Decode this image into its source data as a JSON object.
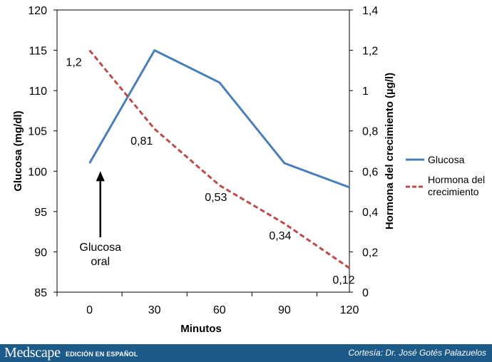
{
  "chart_data": {
    "type": "line",
    "x": [
      0,
      30,
      60,
      90,
      120
    ],
    "xticks": [
      "0",
      "30",
      "60",
      "90",
      "120"
    ],
    "xlabel": "Minutos",
    "ylabel_left": "Glucosa (mg/dl)",
    "ylabel_right": "Hormona del crecimiento (µg/l)",
    "ylim_left": [
      85,
      120
    ],
    "ylim_right": [
      0,
      1.4
    ],
    "yticks_left": [
      "85",
      "90",
      "95",
      "100",
      "105",
      "110",
      "115",
      "120"
    ],
    "yticks_right": [
      "0",
      "0,2",
      "0,4",
      "0,6",
      "0,8",
      "1",
      "1,2",
      "1,4"
    ],
    "series": [
      {
        "name": "Glucosa",
        "axis": "left",
        "style": "solid",
        "color": "#4a7ebb",
        "values": [
          101,
          115,
          111,
          101,
          98
        ]
      },
      {
        "name": "Hormona del crecimiento",
        "legend_lines": [
          "Hormona del",
          "crecimiento"
        ],
        "axis": "right",
        "style": "dashed",
        "color": "#be4b48",
        "values": [
          1.2,
          0.81,
          0.53,
          0.34,
          0.12
        ]
      }
    ],
    "data_labels": [
      "1,2",
      "0,81",
      "0,53",
      "0,34",
      "0,12"
    ],
    "annotation": {
      "lines": [
        "Glucosa",
        "oral"
      ],
      "x": 5,
      "arrow_target_glucose": 100
    },
    "grid": false,
    "legend_position": "right"
  },
  "footer": {
    "brand": "Medscape",
    "brand_sub": "EDICIÓN EN ESPAÑOL",
    "courtesy": "Cortesía: Dr. José Gotés Palazuelos",
    "background": "#1c5a8a"
  }
}
